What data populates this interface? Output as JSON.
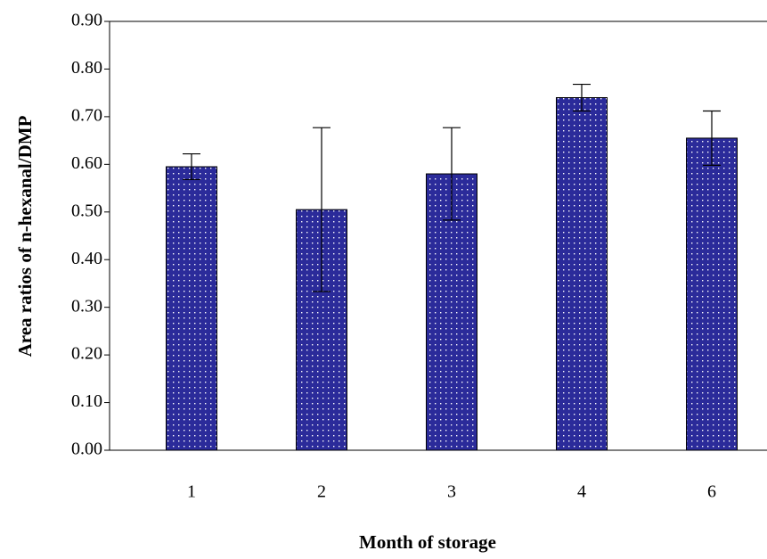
{
  "chart_data": {
    "type": "bar",
    "x_label": "Month of storage",
    "y_label": "Area ratios of n-hexanal/DMP",
    "categories": [
      "1",
      "2",
      "3",
      "4",
      "6"
    ],
    "values": [
      0.595,
      0.505,
      0.58,
      0.74,
      0.655
    ],
    "errors": [
      0.027,
      0.172,
      0.097,
      0.028,
      0.057
    ],
    "color": "#2b2b9a",
    "ylim": [
      0,
      0.9
    ],
    "yticks": [
      {
        "value": 0,
        "label": "0.00"
      },
      {
        "value": 0.1,
        "label": "0.10"
      },
      {
        "value": 0.2,
        "label": "0.20"
      },
      {
        "value": 0.3,
        "label": "0.30"
      },
      {
        "value": 0.4,
        "label": "0.40"
      },
      {
        "value": 0.5,
        "label": "0.50"
      },
      {
        "value": 0.6,
        "label": "0.60"
      },
      {
        "value": 0.7,
        "label": "0.70"
      },
      {
        "value": 0.8,
        "label": "0.80"
      },
      {
        "value": 0.9,
        "label": "0.90"
      }
    ]
  }
}
